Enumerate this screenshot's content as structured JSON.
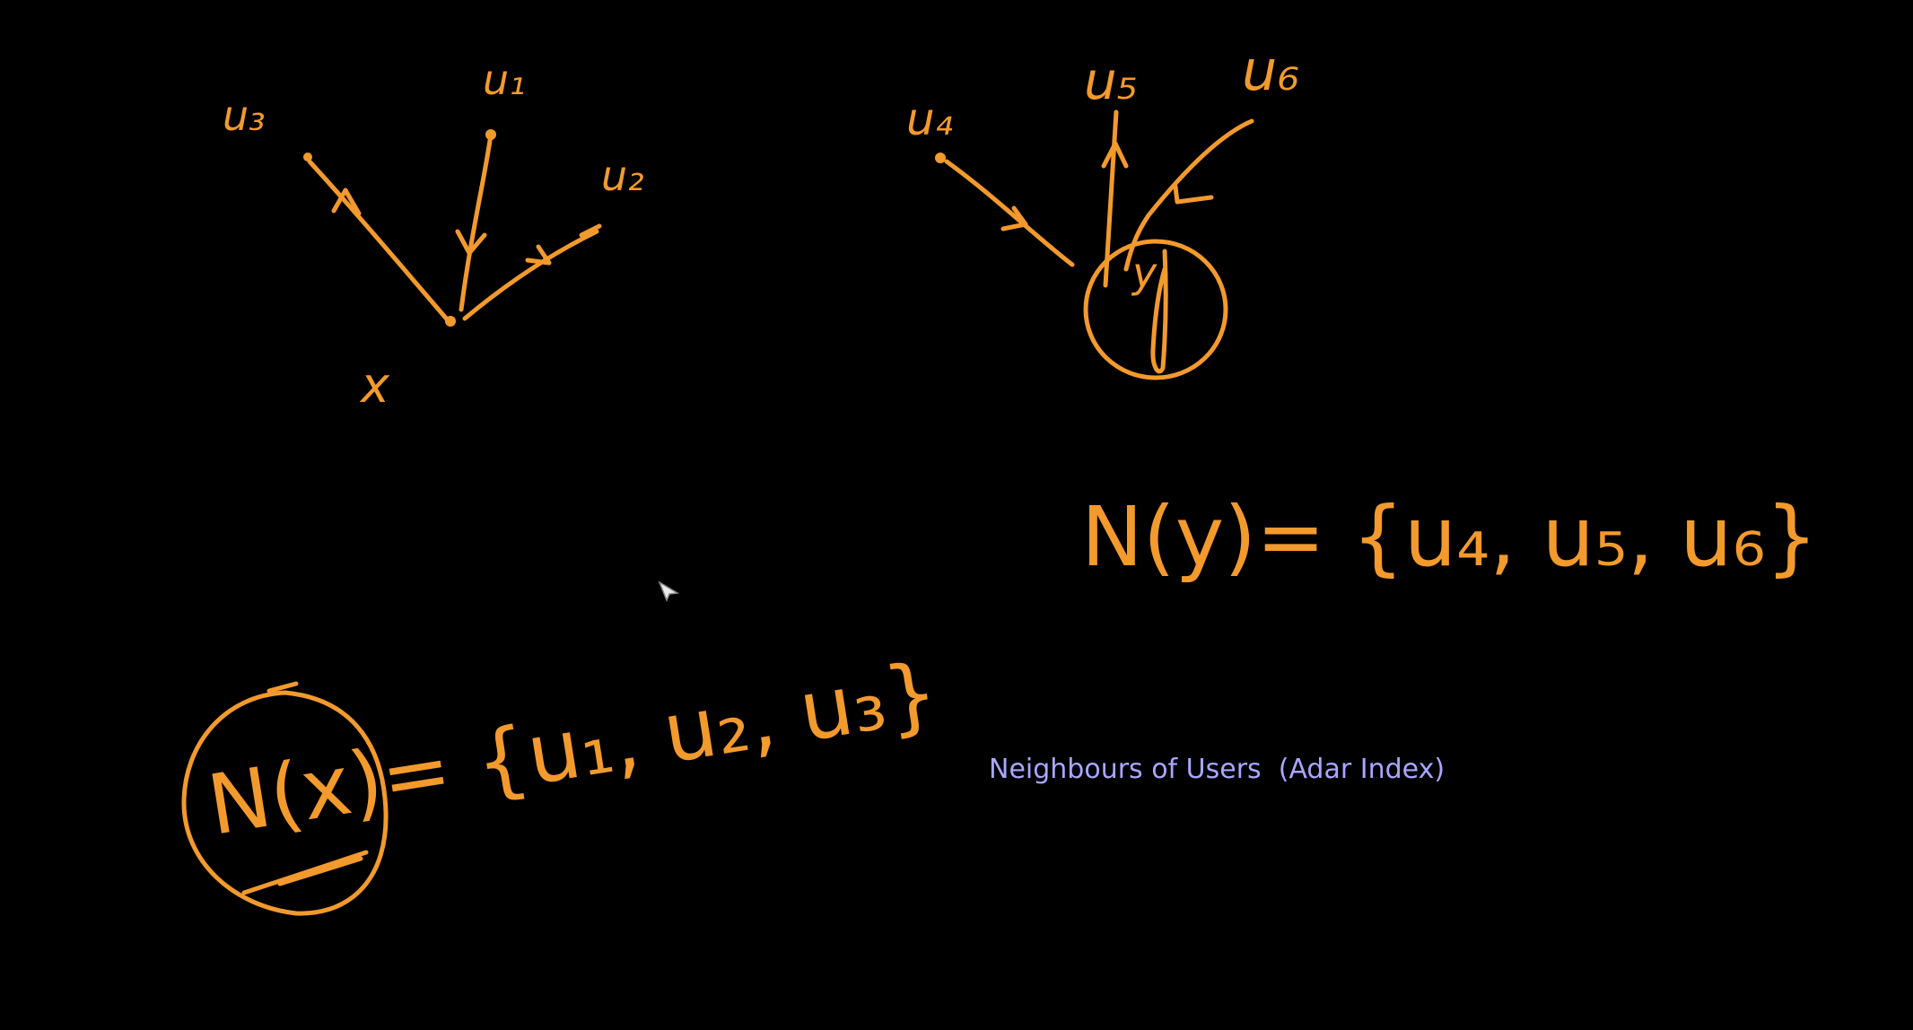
{
  "diagram": {
    "ink_color": "#f39a2d",
    "caption_color": "#a9a6ff",
    "caption": "Neighbours of Users  (Adar Index)",
    "left_graph": {
      "center_label": "x",
      "nodes": [
        "u3",
        "u1",
        "u2"
      ]
    },
    "right_graph": {
      "center_label": "y",
      "nodes": [
        "u4",
        "u5",
        "u6"
      ]
    },
    "equation_y": "N(y) = {u4, u5, u6}",
    "equation_x": "N(x) = {u1, u2, u3}"
  }
}
